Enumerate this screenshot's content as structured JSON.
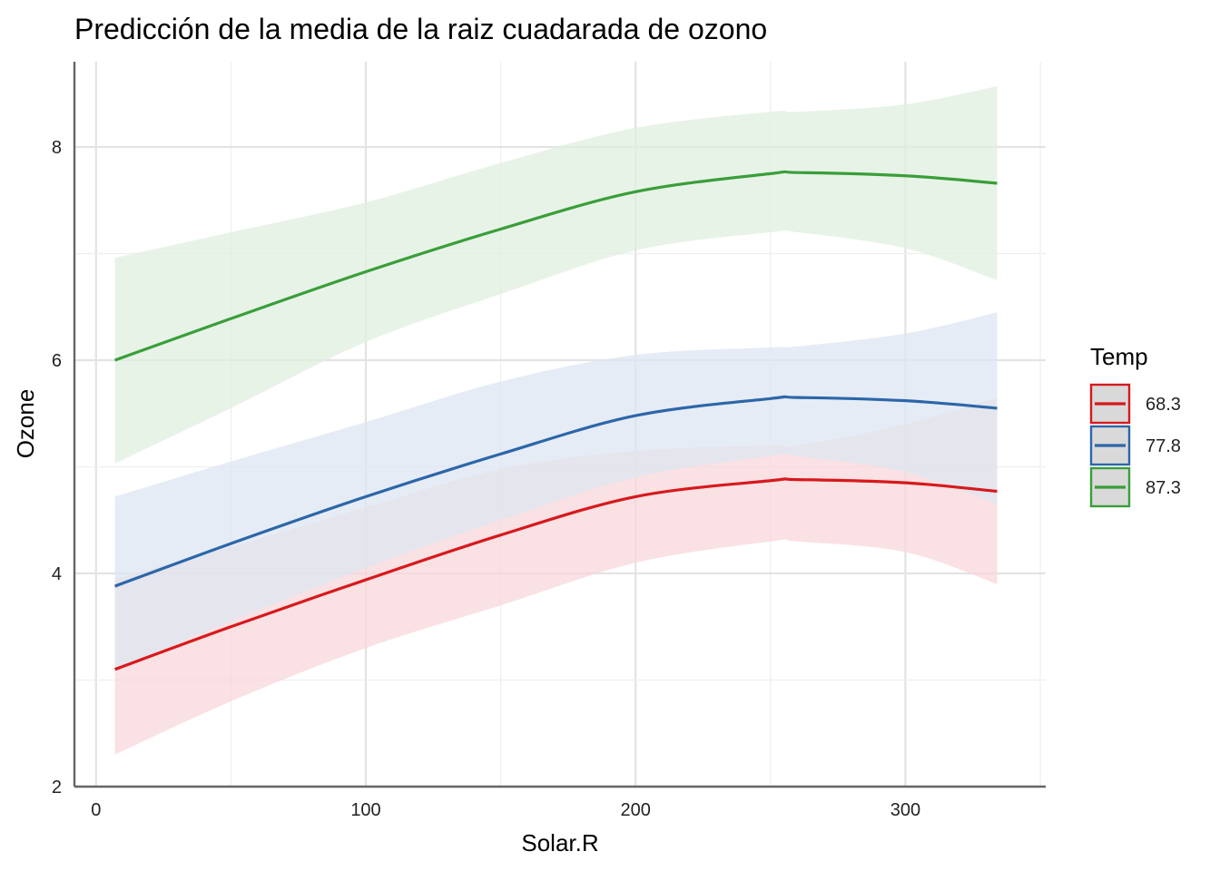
{
  "chart_data": {
    "type": "line",
    "title": "Predicción de la media de la raiz cuadarada de ozono",
    "xlabel": "Solar.R",
    "ylabel": "Ozone",
    "xlim": [
      -8,
      352
    ],
    "ylim": [
      2,
      8.8
    ],
    "xticks": [
      0,
      100,
      200,
      300
    ],
    "yticks": [
      2,
      4,
      6,
      8
    ],
    "xtick_labels": [
      "0",
      "100",
      "200",
      "300"
    ],
    "ytick_labels": [
      "2",
      "4",
      "6",
      "8"
    ],
    "grid": true,
    "legend": {
      "title": "Temp",
      "position": "right"
    },
    "x": [
      7,
      50,
      100,
      150,
      200,
      250,
      260,
      300,
      334
    ],
    "series": [
      {
        "name": "68.3",
        "color": "#d7191c",
        "fill": "#f8d7da",
        "values": [
          3.1,
          3.5,
          3.94,
          4.36,
          4.72,
          4.87,
          4.88,
          4.85,
          4.77
        ],
        "lower": [
          2.3,
          2.8,
          3.3,
          3.7,
          4.1,
          4.3,
          4.3,
          4.2,
          3.9
        ],
        "upper": [
          3.95,
          4.25,
          4.62,
          4.98,
          5.15,
          5.2,
          5.2,
          5.4,
          5.65
        ]
      },
      {
        "name": "77.8",
        "color": "#2c66a8",
        "fill": "#dde6f1",
        "values": [
          3.88,
          4.28,
          4.72,
          5.12,
          5.48,
          5.64,
          5.65,
          5.62,
          5.55
        ],
        "lower": [
          3.1,
          3.55,
          4.05,
          4.5,
          4.9,
          5.1,
          5.1,
          4.95,
          4.65
        ],
        "upper": [
          4.72,
          5.05,
          5.42,
          5.8,
          6.05,
          6.12,
          6.13,
          6.25,
          6.45
        ]
      },
      {
        "name": "87.3",
        "color": "#3a9e3a",
        "fill": "#e0efe0",
        "values": [
          6.0,
          6.39,
          6.83,
          7.23,
          7.58,
          7.75,
          7.76,
          7.73,
          7.66
        ],
        "lower": [
          5.03,
          5.55,
          6.17,
          6.62,
          7.03,
          7.2,
          7.2,
          7.05,
          6.75
        ],
        "upper": [
          6.96,
          7.2,
          7.48,
          7.85,
          8.18,
          8.33,
          8.33,
          8.4,
          8.57
        ]
      }
    ]
  }
}
